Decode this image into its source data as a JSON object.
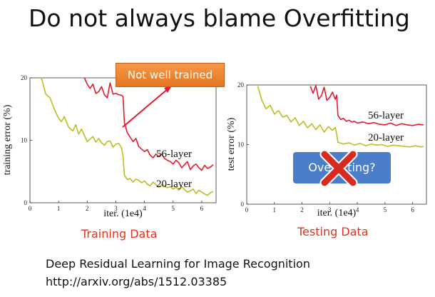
{
  "title": "Do not always blame Overfitting",
  "callout": "Not well trained",
  "overfitting_label": "Overfitting?",
  "captions": {
    "left": "Training Data",
    "right": "Testing Data"
  },
  "reference": {
    "line1": "Deep Residual Learning for Image Recognition",
    "line2": "http://arxiv.org/abs/1512.03385"
  },
  "colors": {
    "series_56": "#e8192c",
    "series_20": "#bcbf1f",
    "caption": "#e0321e",
    "callout": "#ed8b3a",
    "overfit_box": "#4b7ec8"
  },
  "chart_data": [
    {
      "type": "line",
      "xlabel": "iter. (1e4)",
      "ylabel": "training error (%)",
      "xlim": [
        0,
        6.5
      ],
      "ylim": [
        0,
        20
      ],
      "xticks": [
        "0",
        "1",
        "2",
        "3",
        "4",
        "5",
        "6"
      ],
      "yticks": [
        "0",
        "10",
        "20"
      ],
      "series": [
        {
          "name": "56-layer",
          "x": [
            1.9,
            2.0,
            2.1,
            2.2,
            2.3,
            2.4,
            2.5,
            2.6,
            2.7,
            2.8,
            2.9,
            3.0,
            3.1,
            3.2,
            3.25,
            3.3,
            3.4,
            3.5,
            3.6,
            3.7,
            3.8,
            3.9,
            4.0,
            4.1,
            4.2,
            4.3,
            4.4,
            4.5,
            4.6,
            4.7,
            4.8,
            4.9,
            5.0,
            5.1,
            5.2,
            5.3,
            5.4,
            5.5,
            5.6,
            5.7,
            5.8,
            5.9,
            6.0,
            6.1,
            6.2,
            6.3,
            6.4
          ],
          "y": [
            20.0,
            19.0,
            18.3,
            19.0,
            17.5,
            17.8,
            18.6,
            17.3,
            16.8,
            19.2,
            17.4,
            17.5,
            17.3,
            17.2,
            17.0,
            12.8,
            11.2,
            10.5,
            9.8,
            10.3,
            9.0,
            8.6,
            8.2,
            8.5,
            7.6,
            7.2,
            7.8,
            7.4,
            7.8,
            7.1,
            6.8,
            6.6,
            6.2,
            6.8,
            6.4,
            5.6,
            6.1,
            6.6,
            5.3,
            5.9,
            6.2,
            5.6,
            5.2,
            6.0,
            5.5,
            5.7,
            6.1
          ]
        },
        {
          "name": "20-layer",
          "x": [
            0.4,
            0.55,
            0.7,
            0.85,
            1.0,
            1.1,
            1.2,
            1.35,
            1.5,
            1.6,
            1.7,
            1.8,
            1.9,
            2.0,
            2.1,
            2.2,
            2.3,
            2.4,
            2.5,
            2.6,
            2.7,
            2.8,
            2.9,
            3.0,
            3.1,
            3.2,
            3.25,
            3.3,
            3.4,
            3.5,
            3.6,
            3.7,
            3.8,
            3.9,
            4.0,
            4.1,
            4.2,
            4.3,
            4.4,
            4.5,
            4.6,
            4.7,
            4.8,
            4.9,
            5.0,
            5.1,
            5.2,
            5.3,
            5.4,
            5.5,
            5.6,
            5.7,
            5.8,
            5.9,
            6.0,
            6.1,
            6.2,
            6.3,
            6.4
          ],
          "y": [
            20.0,
            17.4,
            16.8,
            15.0,
            13.5,
            13.0,
            13.8,
            12.1,
            11.5,
            12.5,
            11.0,
            11.8,
            10.8,
            9.8,
            10.2,
            10.6,
            9.7,
            10.3,
            9.6,
            9.2,
            9.8,
            9.9,
            8.9,
            9.4,
            9.5,
            8.8,
            7.5,
            4.4,
            3.7,
            3.9,
            3.3,
            3.8,
            3.6,
            3.2,
            3.5,
            3.0,
            2.7,
            3.3,
            2.9,
            2.5,
            2.9,
            2.7,
            2.4,
            2.6,
            2.2,
            2.5,
            2.0,
            2.6,
            2.1,
            1.7,
            1.9,
            2.2,
            1.5,
            2.0,
            1.7,
            1.4,
            1.2,
            1.6,
            1.8
          ]
        }
      ]
    },
    {
      "type": "line",
      "xlabel": "iter. (1e4)",
      "ylabel": "test error (%)",
      "xlim": [
        0,
        6.5
      ],
      "ylim": [
        0,
        20
      ],
      "xticks": [
        "0",
        "1",
        "2",
        "3",
        "4",
        "5",
        "6"
      ],
      "yticks": [
        "0",
        "10",
        "20"
      ],
      "series": [
        {
          "name": "56-layer",
          "x": [
            2.3,
            2.4,
            2.5,
            2.6,
            2.7,
            2.8,
            2.9,
            3.0,
            3.1,
            3.2,
            3.25,
            3.3,
            3.4,
            3.5,
            3.6,
            3.7,
            3.8,
            3.9,
            4.0,
            4.2,
            4.4,
            4.6,
            4.8,
            5.0,
            5.2,
            5.4,
            5.6,
            5.8,
            6.0,
            6.2,
            6.4
          ],
          "y": [
            19.8,
            18.6,
            19.9,
            17.6,
            18.2,
            19.6,
            17.4,
            17.9,
            18.8,
            17.6,
            18.3,
            14.9,
            14.2,
            14.4,
            13.9,
            14.1,
            13.8,
            13.9,
            13.6,
            13.8,
            13.5,
            13.7,
            13.4,
            13.3,
            13.6,
            13.2,
            13.5,
            13.3,
            13.2,
            13.4,
            13.3
          ]
        },
        {
          "name": "20-layer",
          "x": [
            0.4,
            0.55,
            0.7,
            0.85,
            1.0,
            1.15,
            1.3,
            1.45,
            1.6,
            1.75,
            1.9,
            2.05,
            2.2,
            2.35,
            2.5,
            2.65,
            2.8,
            2.95,
            3.1,
            3.2,
            3.25,
            3.3,
            3.5,
            3.7,
            3.9,
            4.1,
            4.3,
            4.5,
            4.7,
            4.9,
            5.1,
            5.3,
            5.5,
            5.7,
            5.9,
            6.1,
            6.3,
            6.4
          ],
          "y": [
            19.8,
            17.4,
            16.0,
            16.6,
            15.1,
            15.7,
            14.6,
            14.9,
            13.8,
            14.5,
            13.2,
            13.9,
            12.8,
            13.5,
            12.5,
            13.3,
            12.1,
            13.0,
            12.4,
            12.9,
            11.8,
            10.4,
            10.1,
            10.3,
            9.9,
            10.2,
            9.8,
            10.1,
            9.9,
            10.0,
            9.7,
            9.9,
            9.8,
            9.7,
            9.6,
            9.8,
            9.6,
            9.7
          ]
        }
      ]
    }
  ]
}
